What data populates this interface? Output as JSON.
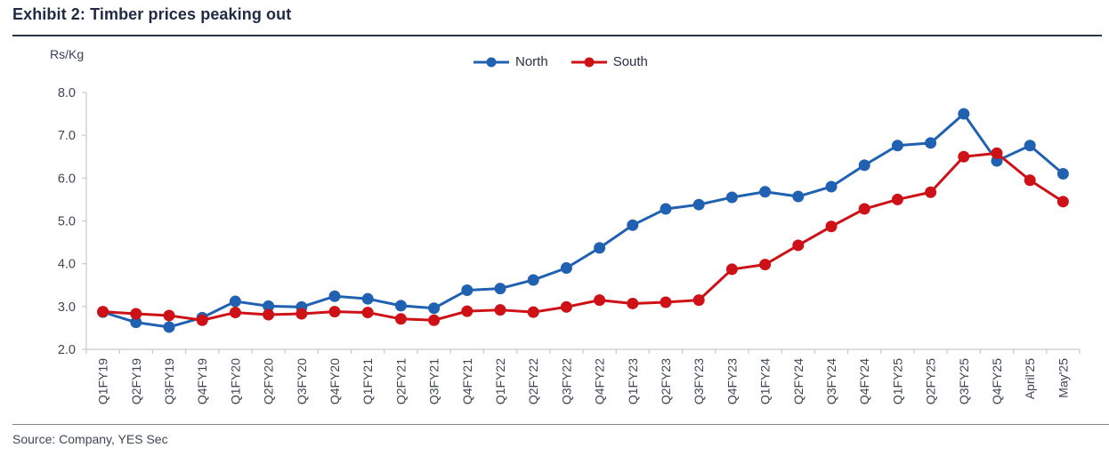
{
  "header": {
    "title": "Exhibit 2: Timber prices peaking out"
  },
  "footer": {
    "source": "Source: Company, YES Sec"
  },
  "chart": {
    "unit_label": "Rs/Kg",
    "legend": [
      {
        "name": "North",
        "color": "#2061B1"
      },
      {
        "name": "South",
        "color": "#CD1116"
      }
    ],
    "axis_color": "#C6C9CE",
    "tick_label_color": "#3F4652"
  },
  "chart_data": {
    "type": "line",
    "title": "Exhibit 2: Timber prices peaking out",
    "xlabel": "",
    "ylabel": "Rs/Kg",
    "ylim": [
      2.0,
      8.0
    ],
    "ytick_step": 1.0,
    "ytick_labels": [
      "2.0",
      "3.0",
      "4.0",
      "5.0",
      "6.0",
      "7.0",
      "8.0"
    ],
    "grid": false,
    "legend_position": "top-center",
    "x_label_rotation_deg": 90,
    "categories": [
      "Q1FY19",
      "Q2FY19",
      "Q3FY19",
      "Q4FY19",
      "Q1FY20",
      "Q2FY20",
      "Q3FY20",
      "Q4FY20",
      "Q1FY21",
      "Q2FY21",
      "Q3FY21",
      "Q4FY21",
      "Q1FY22",
      "Q2FY22",
      "Q3FY22",
      "Q4FY22",
      "Q1FY23",
      "Q2FY23",
      "Q3FY23",
      "Q4FY23",
      "Q1FY24",
      "Q2FY24",
      "Q3FY24",
      "Q4FY24",
      "Q1FY25",
      "Q2FY25",
      "Q3FY25",
      "Q4FY25",
      "April'25",
      "May'25"
    ],
    "series": [
      {
        "name": "North",
        "color": "#2061B1",
        "values": [
          2.87,
          2.63,
          2.52,
          2.74,
          3.12,
          3.01,
          2.99,
          3.24,
          3.18,
          3.02,
          2.96,
          3.38,
          3.42,
          3.62,
          3.9,
          4.37,
          4.9,
          5.28,
          5.38,
          5.55,
          5.68,
          5.57,
          5.8,
          6.3,
          6.76,
          6.82,
          7.5,
          6.4,
          6.76,
          6.1
        ]
      },
      {
        "name": "South",
        "color": "#CD1116",
        "values": [
          2.88,
          2.83,
          2.79,
          2.68,
          2.86,
          2.81,
          2.83,
          2.88,
          2.86,
          2.71,
          2.68,
          2.89,
          2.92,
          2.87,
          2.99,
          3.15,
          3.07,
          3.1,
          3.15,
          3.87,
          3.98,
          4.43,
          4.87,
          5.28,
          5.5,
          5.67,
          6.5,
          6.58,
          5.95,
          5.45
        ]
      }
    ]
  }
}
